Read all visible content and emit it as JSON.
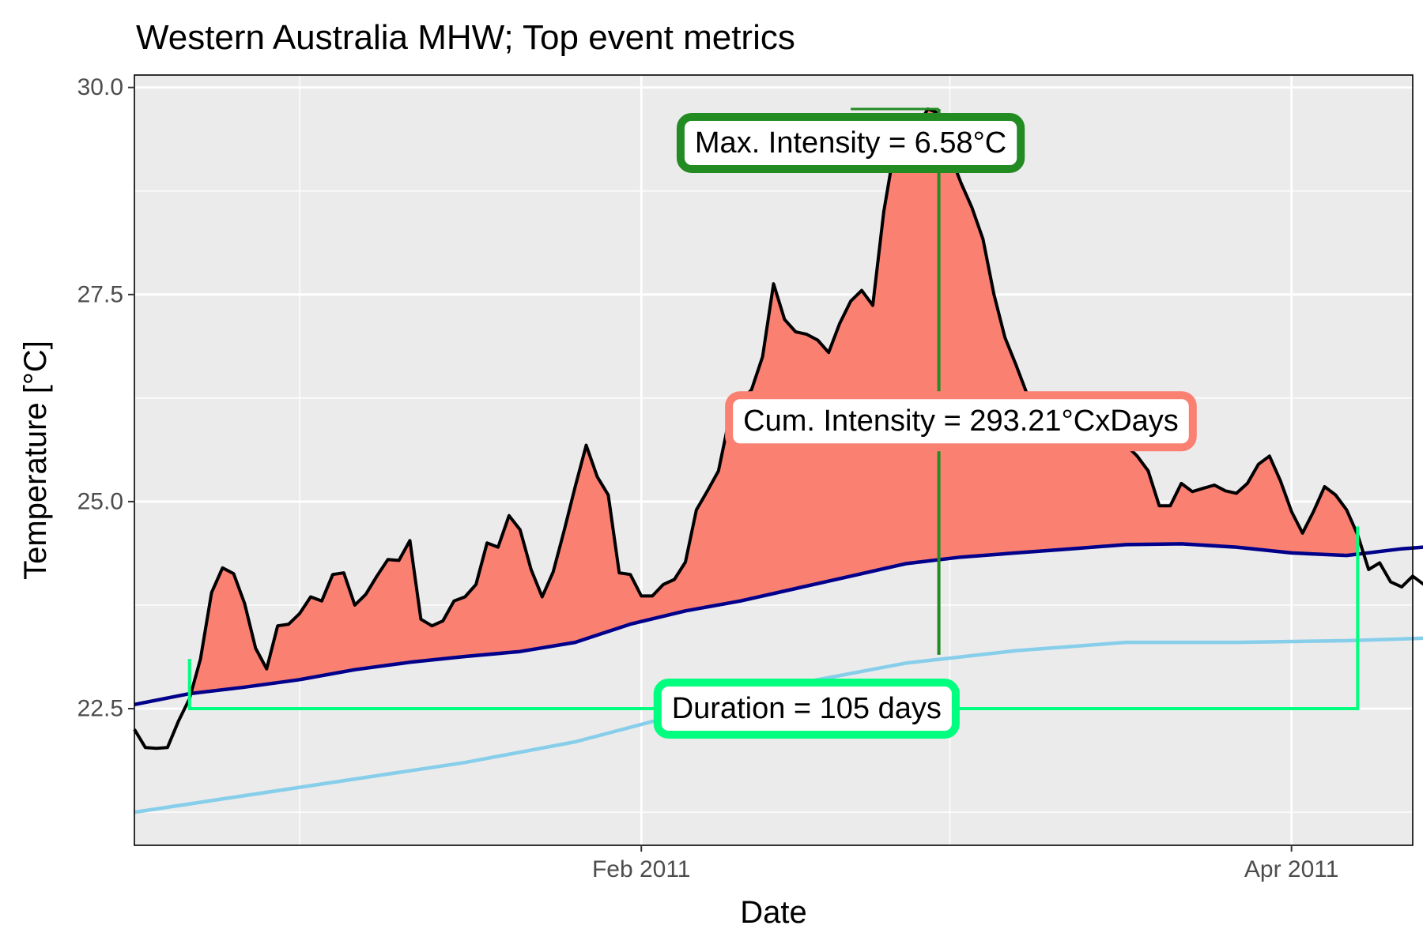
{
  "chart_data": {
    "type": "line",
    "title": "Western Australia MHW; Top event metrics",
    "xlabel": "Date",
    "ylabel": "Temperature [°C]",
    "x_tick_labels": [
      {
        "date": "2011-02-01",
        "label": "Feb 2011"
      },
      {
        "date": "2011-04-01",
        "label": "Apr 2011"
      }
    ],
    "x_minor_breaks": [
      "2011-01-01",
      "2011-03-01"
    ],
    "xlim": [
      "2010-12-17",
      "2011-04-12"
    ],
    "ylim": [
      20.85,
      30.15
    ],
    "y_ticks": [
      {
        "value": 22.5,
        "label": "22.5"
      },
      {
        "value": 25.0,
        "label": "25.0"
      },
      {
        "value": 27.5,
        "label": "27.5"
      },
      {
        "value": 30.0,
        "label": "30.0"
      }
    ],
    "y_minor_breaks": [
      21.25,
      23.75,
      26.25,
      28.75
    ],
    "grid": true,
    "fill_color": "#fa8072",
    "series": [
      {
        "role": "temperature",
        "color": "#000000",
        "points": [
          [
            "2010-12-17",
            22.25
          ],
          [
            "2010-12-18",
            22.03
          ],
          [
            "2010-12-19",
            22.02
          ],
          [
            "2010-12-20",
            22.03
          ],
          [
            "2010-12-21",
            22.35
          ],
          [
            "2010-12-22",
            22.62
          ],
          [
            "2010-12-23",
            23.1
          ],
          [
            "2010-12-24",
            23.9
          ],
          [
            "2010-12-25",
            24.2
          ],
          [
            "2010-12-26",
            24.13
          ],
          [
            "2010-12-27",
            23.77
          ],
          [
            "2010-12-28",
            23.23
          ],
          [
            "2010-12-29",
            22.98
          ],
          [
            "2010-12-30",
            23.5
          ],
          [
            "2010-12-31",
            23.52
          ],
          [
            "2011-01-01",
            23.65
          ],
          [
            "2011-01-02",
            23.85
          ],
          [
            "2011-01-03",
            23.8
          ],
          [
            "2011-01-04",
            24.12
          ],
          [
            "2011-01-05",
            24.14
          ],
          [
            "2011-01-06",
            23.75
          ],
          [
            "2011-01-07",
            23.88
          ],
          [
            "2011-01-08",
            24.1
          ],
          [
            "2011-01-09",
            24.3
          ],
          [
            "2011-01-10",
            24.29
          ],
          [
            "2011-01-11",
            24.53
          ],
          [
            "2011-01-12",
            23.58
          ],
          [
            "2011-01-13",
            23.5
          ],
          [
            "2011-01-14",
            23.56
          ],
          [
            "2011-01-15",
            23.8
          ],
          [
            "2011-01-16",
            23.85
          ],
          [
            "2011-01-17",
            24.0
          ],
          [
            "2011-01-18",
            24.5
          ],
          [
            "2011-01-19",
            24.45
          ],
          [
            "2011-01-20",
            24.83
          ],
          [
            "2011-01-21",
            24.66
          ],
          [
            "2011-01-22",
            24.18
          ],
          [
            "2011-01-23",
            23.85
          ],
          [
            "2011-01-24",
            24.15
          ],
          [
            "2011-01-25",
            24.65
          ],
          [
            "2011-01-26",
            25.18
          ],
          [
            "2011-01-27",
            25.68
          ],
          [
            "2011-01-28",
            25.3
          ],
          [
            "2011-01-29",
            25.08
          ],
          [
            "2011-01-30",
            24.14
          ],
          [
            "2011-01-31",
            24.12
          ],
          [
            "2011-02-01",
            23.86
          ],
          [
            "2011-02-02",
            23.86
          ],
          [
            "2011-02-03",
            24.0
          ],
          [
            "2011-02-04",
            24.06
          ],
          [
            "2011-02-05",
            24.27
          ],
          [
            "2011-02-06",
            24.9
          ],
          [
            "2011-02-07",
            25.13
          ],
          [
            "2011-02-08",
            25.37
          ],
          [
            "2011-02-09",
            26.01
          ],
          [
            "2011-02-10",
            26.22
          ],
          [
            "2011-02-11",
            26.35
          ],
          [
            "2011-02-12",
            26.75
          ],
          [
            "2011-02-13",
            27.63
          ],
          [
            "2011-02-14",
            27.2
          ],
          [
            "2011-02-15",
            27.05
          ],
          [
            "2011-02-16",
            27.02
          ],
          [
            "2011-02-17",
            26.95
          ],
          [
            "2011-02-18",
            26.8
          ],
          [
            "2011-02-19",
            27.15
          ],
          [
            "2011-02-20",
            27.42
          ],
          [
            "2011-02-21",
            27.55
          ],
          [
            "2011-02-22",
            27.37
          ],
          [
            "2011-02-23",
            28.5
          ],
          [
            "2011-02-24",
            29.28
          ],
          [
            "2011-02-25",
            29.45
          ],
          [
            "2011-02-26",
            29.52
          ],
          [
            "2011-02-27",
            29.74
          ],
          [
            "2011-02-28",
            29.69
          ],
          [
            "2011-03-01",
            29.2
          ],
          [
            "2011-03-02",
            28.85
          ],
          [
            "2011-03-03",
            28.55
          ],
          [
            "2011-03-04",
            28.17
          ],
          [
            "2011-03-05",
            27.5
          ],
          [
            "2011-03-06",
            26.98
          ],
          [
            "2011-03-07",
            26.65
          ],
          [
            "2011-03-08",
            26.3
          ],
          [
            "2011-03-09",
            26.12
          ],
          [
            "2011-03-10",
            25.93
          ],
          [
            "2011-03-11",
            25.95
          ],
          [
            "2011-03-12",
            25.9
          ],
          [
            "2011-03-13",
            25.88
          ],
          [
            "2011-03-14",
            25.85
          ],
          [
            "2011-03-15",
            25.8
          ],
          [
            "2011-03-16",
            25.75
          ],
          [
            "2011-03-17",
            25.68
          ],
          [
            "2011-03-18",
            25.55
          ],
          [
            "2011-03-19",
            25.37
          ],
          [
            "2011-03-20",
            24.95
          ],
          [
            "2011-03-21",
            24.95
          ],
          [
            "2011-03-22",
            25.22
          ],
          [
            "2011-03-23",
            25.12
          ],
          [
            "2011-03-24",
            25.16
          ],
          [
            "2011-03-25",
            25.2
          ],
          [
            "2011-03-26",
            25.13
          ],
          [
            "2011-03-27",
            25.1
          ],
          [
            "2011-03-28",
            25.22
          ],
          [
            "2011-03-29",
            25.45
          ],
          [
            "2011-03-30",
            25.55
          ],
          [
            "2011-03-31",
            25.25
          ],
          [
            "2011-04-01",
            24.88
          ],
          [
            "2011-04-02",
            24.62
          ],
          [
            "2011-04-03",
            24.88
          ],
          [
            "2011-04-04",
            25.18
          ],
          [
            "2011-04-05",
            25.08
          ],
          [
            "2011-04-06",
            24.9
          ],
          [
            "2011-04-07",
            24.6
          ],
          [
            "2011-04-08",
            24.18
          ],
          [
            "2011-04-09",
            24.26
          ],
          [
            "2011-04-10",
            24.03
          ],
          [
            "2011-04-11",
            23.97
          ],
          [
            "2011-04-12",
            24.1
          ],
          [
            "2011-04-13",
            24.0
          ]
        ]
      },
      {
        "role": "threshold",
        "color": "#00008b",
        "points": [
          [
            "2010-12-17",
            22.55
          ],
          [
            "2010-12-22",
            22.68
          ],
          [
            "2010-12-27",
            22.76
          ],
          [
            "2011-01-01",
            22.85
          ],
          [
            "2011-01-06",
            22.97
          ],
          [
            "2011-01-11",
            23.06
          ],
          [
            "2011-01-16",
            23.13
          ],
          [
            "2011-01-21",
            23.19
          ],
          [
            "2011-01-26",
            23.3
          ],
          [
            "2011-01-31",
            23.52
          ],
          [
            "2011-02-05",
            23.68
          ],
          [
            "2011-02-10",
            23.8
          ],
          [
            "2011-02-15",
            23.95
          ],
          [
            "2011-02-20",
            24.1
          ],
          [
            "2011-02-25",
            24.25
          ],
          [
            "2011-03-02",
            24.33
          ],
          [
            "2011-03-07",
            24.38
          ],
          [
            "2011-03-12",
            24.43
          ],
          [
            "2011-03-17",
            24.48
          ],
          [
            "2011-03-22",
            24.49
          ],
          [
            "2011-03-27",
            24.45
          ],
          [
            "2011-04-01",
            24.38
          ],
          [
            "2011-04-06",
            24.35
          ],
          [
            "2011-04-11",
            24.43
          ],
          [
            "2011-04-13",
            24.45
          ]
        ]
      },
      {
        "role": "climatology",
        "color": "#87ceeb",
        "points": [
          [
            "2010-12-17",
            21.25
          ],
          [
            "2010-12-27",
            21.45
          ],
          [
            "2011-01-06",
            21.65
          ],
          [
            "2011-01-16",
            21.85
          ],
          [
            "2011-01-26",
            22.1
          ],
          [
            "2011-02-05",
            22.45
          ],
          [
            "2011-02-15",
            22.8
          ],
          [
            "2011-02-25",
            23.05
          ],
          [
            "2011-03-07",
            23.2
          ],
          [
            "2011-03-17",
            23.3
          ],
          [
            "2011-03-27",
            23.3
          ],
          [
            "2011-04-06",
            23.32
          ],
          [
            "2011-04-13",
            23.35
          ]
        ]
      }
    ],
    "annotations": [
      {
        "label": "Max. Intensity = 6.58°C",
        "color": "#228b22",
        "anchor_date": "2011-02-20",
        "anchor_value": 29.33,
        "line_date": "2011-02-28",
        "line_value_top": 29.74,
        "line_value_bottom": 23.15
      },
      {
        "label": "Cum. Intensity = 293.21°CxDays",
        "color": "#fa8072",
        "anchor_date": "2011-03-02",
        "anchor_value": 25.97
      },
      {
        "label": "Duration = 105 days",
        "color": "#00ff7f",
        "anchor_date": "2011-02-16",
        "anchor_value": 22.5,
        "bracket_start": "2010-12-22",
        "bracket_end": "2011-04-07",
        "bracket_value": 22.5,
        "left_tip_value": 23.1,
        "right_tip_value": 24.7
      }
    ]
  }
}
